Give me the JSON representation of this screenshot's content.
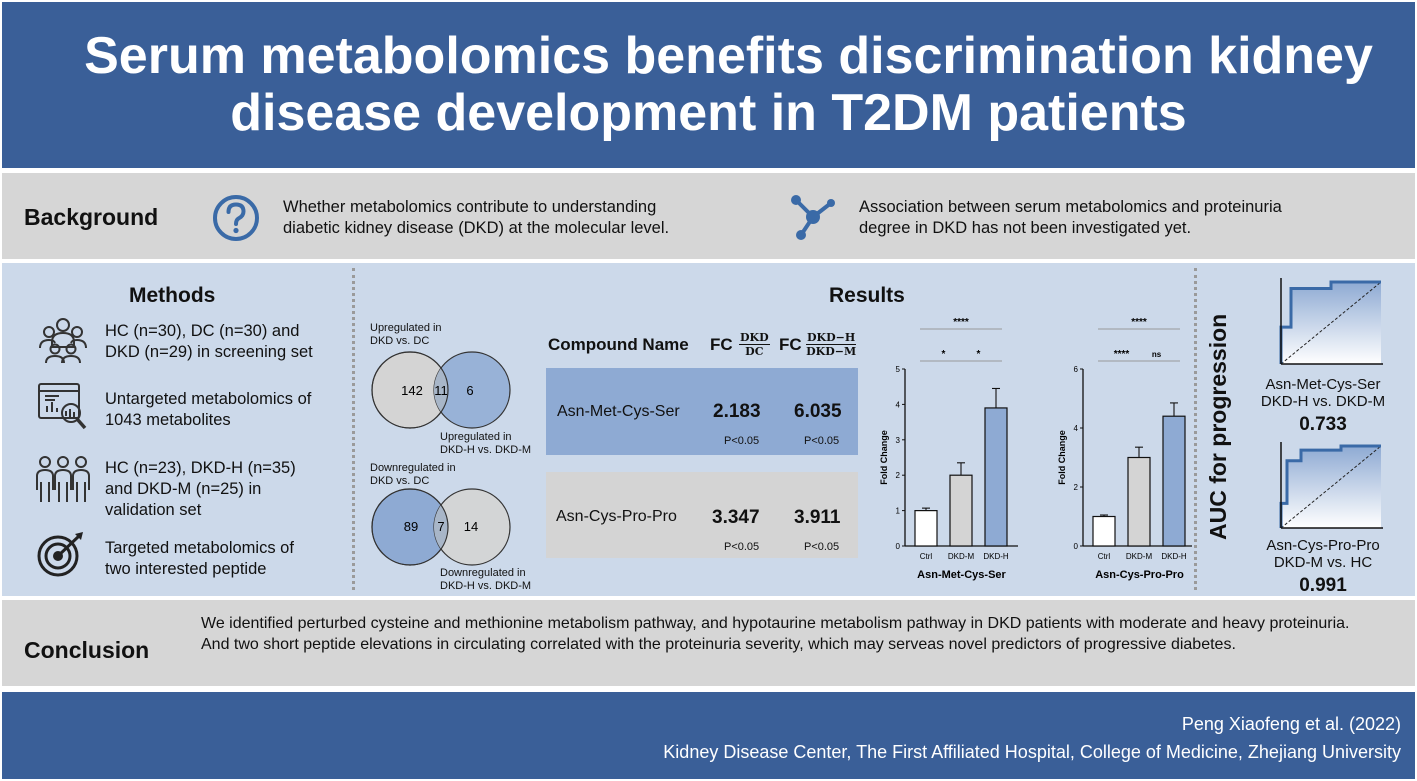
{
  "header": {
    "title_line1": "Serum metabolomics benefits discrimination kidney",
    "title_line2": "disease development in T2DM patients"
  },
  "background": {
    "label": "Background",
    "item1_line1": "Whether metabolomics contribute to understanding",
    "item1_line2": "diabetic kidney disease (DKD) at the molecular level.",
    "item2_line1": "Association between serum metabolomics and proteinuria",
    "item2_line2": "degree in DKD has not been investigated yet.",
    "icons": [
      "question-icon",
      "network-icon"
    ]
  },
  "methods": {
    "title": "Methods",
    "items": [
      {
        "icon": "group-icon",
        "line1": "HC (n=30), DC (n=30) and",
        "line2": "DKD (n=29) in screening set"
      },
      {
        "icon": "analytics-icon",
        "line1": "Untargeted metabolomics of",
        "line2": "1043 metabolites"
      },
      {
        "icon": "people-icon",
        "line1": "HC (n=23), DKD-H (n=35)",
        "line2": "and DKD-M (n=25) in",
        "line3": "validation set"
      },
      {
        "icon": "target-icon",
        "line1": "Targeted metabolomics of",
        "line2": "two interested peptide"
      }
    ]
  },
  "results": {
    "title": "Results",
    "venn_up": {
      "label_left_line1": "Upregulated in",
      "label_left_line2": "DKD vs. DC",
      "label_right_line1": "Upregulated in",
      "label_right_line2": "DKD-H vs. DKD-M",
      "left": "142",
      "overlap": "11",
      "right": "6"
    },
    "venn_down": {
      "label_left_line1": "Downregulated in",
      "label_left_line2": "DKD vs. DC",
      "label_right_line1": "Downregulated in",
      "label_right_line2": "DKD-H vs. DKD-M",
      "left": "89",
      "overlap": "7",
      "right": "14"
    },
    "table": {
      "col_name": "Compound Name",
      "fc": "FC",
      "fc1_num": "DKD",
      "fc1_den": "DC",
      "fc2_num": "DKD−H",
      "fc2_den": "DKD−M",
      "rows": [
        {
          "name": "Asn-Met-Cys-Ser",
          "fc1": "2.183",
          "fc2": "6.035",
          "p1": "P<0.05",
          "p2": "P<0.05"
        },
        {
          "name": "Asn-Cys-Pro-Pro",
          "fc1": "3.347",
          "fc2": "3.911",
          "p1": "P<0.05",
          "p2": "P<0.05"
        }
      ]
    }
  },
  "chart_data": [
    {
      "type": "bar",
      "title": "Asn-Met-Cys-Ser",
      "ylabel": "Fold Change",
      "categories": [
        "Ctrl",
        "DKD-M",
        "DKD-H"
      ],
      "values": [
        1.0,
        2.0,
        3.9
      ],
      "errors": [
        0.07,
        0.35,
        0.55
      ],
      "colors": [
        "#ffffff",
        "#d4d4d4",
        "#8eaad3"
      ],
      "ylim": [
        0,
        5
      ],
      "yticks": [
        "0",
        "1",
        "2",
        "3",
        "4",
        "5"
      ],
      "significance": [
        {
          "from": 0,
          "to": 2,
          "label": "****"
        },
        {
          "from": 0,
          "to": 1,
          "label": "*"
        },
        {
          "from": 1,
          "to": 2,
          "label": "*"
        }
      ]
    },
    {
      "type": "bar",
      "title": "Asn-Cys-Pro-Pro",
      "ylabel": "Fold Change",
      "categories": [
        "Ctrl",
        "DKD-M",
        "DKD-H"
      ],
      "values": [
        1.0,
        3.0,
        4.4
      ],
      "errors": [
        0.05,
        0.35,
        0.45
      ],
      "colors": [
        "#ffffff",
        "#d4d4d4",
        "#8eaad3"
      ],
      "ylim": [
        0,
        6
      ],
      "yticks": [
        "0",
        "2",
        "4",
        "6"
      ],
      "significance": [
        {
          "from": 0,
          "to": 2,
          "label": "****"
        },
        {
          "from": 0,
          "to": 1,
          "label": "****"
        },
        {
          "from": 1,
          "to": 2,
          "label": "ns"
        }
      ]
    }
  ],
  "auc": {
    "title": "AUC for progression",
    "roc1": {
      "line1": "Asn-Met-Cys-Ser",
      "line2": "DKD-H vs. DKD-M",
      "value": "0.733",
      "curve": [
        [
          0,
          0
        ],
        [
          0,
          0.45
        ],
        [
          0.1,
          0.45
        ],
        [
          0.1,
          0.92
        ],
        [
          0.5,
          0.92
        ],
        [
          0.5,
          1
        ],
        [
          1,
          1
        ]
      ]
    },
    "roc2": {
      "line1": "Asn-Cys-Pro-Pro",
      "line2": "DKD-M vs. HC",
      "value": "0.991",
      "curve": [
        [
          0,
          0
        ],
        [
          0,
          0.3
        ],
        [
          0.06,
          0.3
        ],
        [
          0.06,
          0.82
        ],
        [
          0.2,
          0.82
        ],
        [
          0.2,
          0.95
        ],
        [
          0.6,
          0.95
        ],
        [
          0.6,
          1
        ],
        [
          1,
          1
        ]
      ]
    }
  },
  "conclusion": {
    "label": "Conclusion",
    "text": "We identified perturbed cysteine and methionine metabolism pathway, and hypotaurine metabolism pathway in DKD patients with moderate and heavy proteinuria. And two short peptide elevations in circulating correlated with the proteinuria severity, which may serveas novel predictors of progressive diabetes."
  },
  "footer": {
    "author": "Peng Xiaofeng et al.  (2022)",
    "affiliation": "Kidney Disease Center, The First Affiliated Hospital, College of Medicine, Zhejiang University"
  }
}
